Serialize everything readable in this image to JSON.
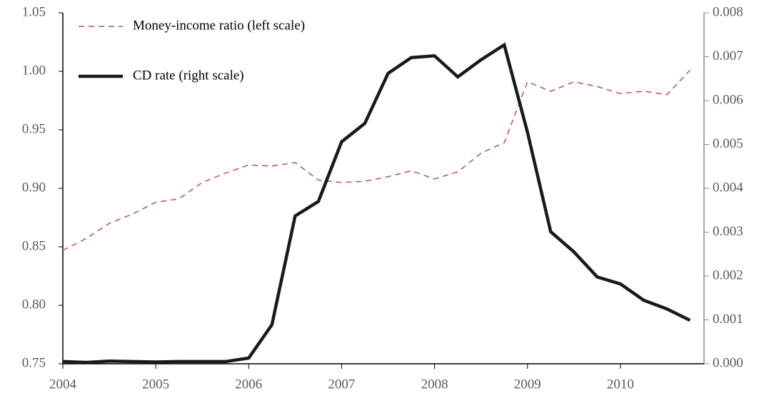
{
  "chart_data": {
    "type": "line",
    "x": [
      2004,
      2004.25,
      2004.5,
      2004.75,
      2005,
      2005.25,
      2005.5,
      2005.75,
      2006,
      2006.25,
      2006.5,
      2006.75,
      2007,
      2007.25,
      2007.5,
      2007.75,
      2008,
      2008.25,
      2008.5,
      2008.75,
      2009,
      2009.25,
      2009.5,
      2009.75,
      2010,
      2010.25,
      2010.5,
      2010.75
    ],
    "xlim": [
      2004,
      2010.9
    ],
    "xticks": [
      2004,
      2005,
      2006,
      2007,
      2008,
      2009,
      2010
    ],
    "ylim": [
      0.75,
      1.05
    ],
    "yticks": [
      0.75,
      {
        "value": 0.8,
        "label": "0.80"
      },
      0.85,
      {
        "value": 0.9,
        "label": "0.90"
      },
      0.95,
      {
        "value": 1.0,
        "label": "1.00"
      },
      1.05
    ],
    "y2lim": [
      0,
      0.008
    ],
    "y2ticks": [
      {
        "value": 0,
        "label": "0.000"
      },
      {
        "value": 0.001,
        "label": "0.001"
      },
      {
        "value": 0.002,
        "label": "0.002"
      },
      {
        "value": 0.003,
        "label": "0.003"
      },
      {
        "value": 0.004,
        "label": "0.004"
      },
      {
        "value": 0.005,
        "label": "0.005"
      },
      {
        "value": 0.006,
        "label": "0.006"
      },
      {
        "value": 0.007,
        "label": "0.007"
      },
      {
        "value": 0.008,
        "label": "0.008"
      }
    ],
    "legend": "upper left",
    "series": [
      {
        "name": "Money-income ratio (left scale)",
        "color": "#c0504d",
        "dashed": true,
        "values": [
          0.847,
          0.857,
          0.87,
          0.878,
          0.888,
          0.891,
          0.905,
          0.913,
          0.92,
          0.919,
          0.922,
          0.907,
          0.905,
          0.906,
          0.91,
          0.915,
          0.908,
          0.914,
          0.93,
          0.939,
          0.991,
          0.983,
          0.991,
          0.987,
          0.981,
          0.983,
          0.98,
          1.001
        ]
      },
      {
        "name": "CD rate (right scale)",
        "color": "#1a1a1a",
        "dashed": false,
        "axis": "y2",
        "values": [
          5e-05,
          3e-05,
          6e-05,
          5e-05,
          4e-05,
          5e-05,
          5e-05,
          5e-05,
          0.00013,
          0.00089,
          0.00337,
          0.0037,
          0.00506,
          0.00548,
          0.00662,
          0.00698,
          0.00702,
          0.00654,
          0.00693,
          0.00727,
          0.00528,
          0.00301,
          0.00255,
          0.00198,
          0.00182,
          0.00145,
          0.00125,
          0.00099
        ]
      }
    ]
  }
}
